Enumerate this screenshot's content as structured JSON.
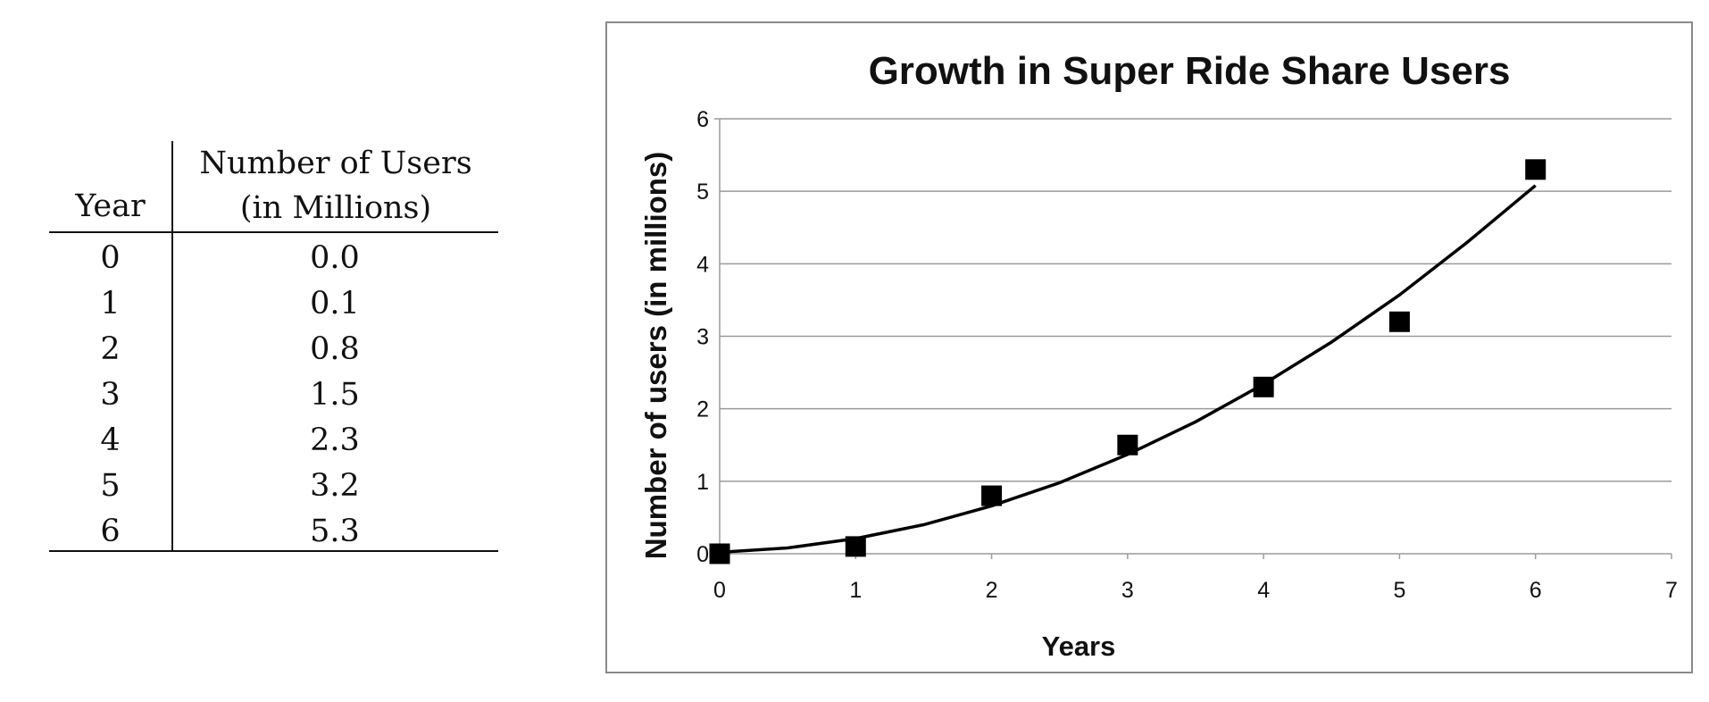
{
  "table": {
    "header_year": "Year",
    "header_users_line1": "Number of Users",
    "header_users_line2": "(in Millions)",
    "rows": [
      {
        "year": "0",
        "users": "0.0"
      },
      {
        "year": "1",
        "users": "0.1"
      },
      {
        "year": "2",
        "users": "0.8"
      },
      {
        "year": "3",
        "users": "1.5"
      },
      {
        "year": "4",
        "users": "2.3"
      },
      {
        "year": "5",
        "users": "3.2"
      },
      {
        "year": "6",
        "users": "5.3"
      }
    ]
  },
  "chart_data": {
    "type": "scatter",
    "title": "Growth in Super Ride Share Users",
    "xlabel": "Years",
    "ylabel": "Number of users (in millions)",
    "xlim": [
      0,
      7
    ],
    "ylim": [
      0,
      6
    ],
    "xticks": [
      0,
      1,
      2,
      3,
      4,
      5,
      6,
      7
    ],
    "yticks": [
      0,
      1,
      2,
      3,
      4,
      5,
      6
    ],
    "grid": "horizontal",
    "legend": "none",
    "marker": "square",
    "marker_color": "#000000",
    "series": [
      {
        "x": [
          0,
          1,
          2,
          3,
          4,
          5,
          6
        ],
        "y": [
          0.0,
          0.1,
          0.8,
          1.5,
          2.3,
          3.2,
          5.3
        ]
      }
    ],
    "trendline": {
      "type": "quadratic",
      "x": [
        0,
        0.5,
        1,
        1.5,
        2,
        2.5,
        3,
        3.5,
        4,
        4.5,
        5,
        5.5,
        6
      ],
      "y": [
        0.02,
        0.08,
        0.21,
        0.4,
        0.66,
        0.98,
        1.37,
        1.82,
        2.34,
        2.92,
        3.57,
        4.3,
        5.08
      ]
    }
  }
}
